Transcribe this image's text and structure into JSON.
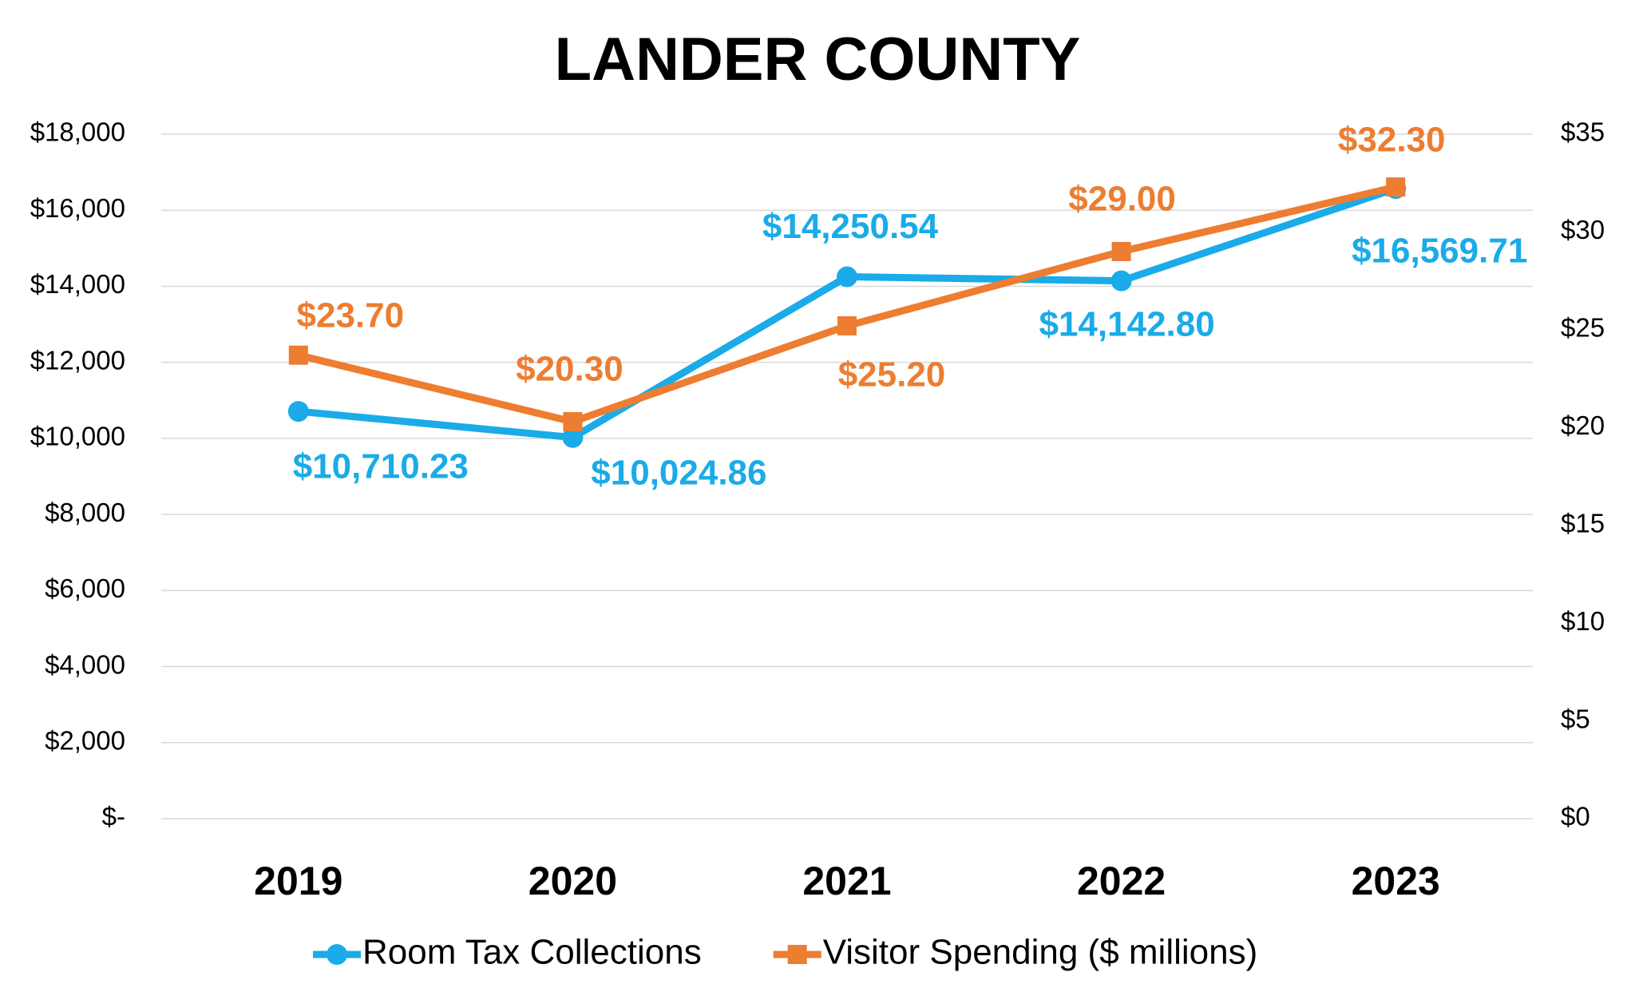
{
  "chart_data": {
    "type": "line",
    "title": "LANDER COUNTY",
    "categories": [
      "2019",
      "2020",
      "2021",
      "2022",
      "2023"
    ],
    "series": [
      {
        "name": "Room Tax Collections",
        "color": "#1aabe8",
        "marker": "circle",
        "axis": "y",
        "values": [
          10710.23,
          10024.86,
          14250.54,
          14142.8,
          16569.71
        ],
        "value_labels": [
          "$10,710.23",
          "$10,024.86",
          "$14,250.54",
          "$14,142.80",
          "$16,569.71"
        ]
      },
      {
        "name": "Visitor Spending ($ millions)",
        "color": "#ed7d31",
        "marker": "square",
        "axis": "y2",
        "values": [
          23.7,
          20.3,
          25.2,
          29.0,
          32.3
        ],
        "value_labels": [
          "$23.70",
          "$20.30",
          "$25.20",
          "$29.00",
          "$32.30"
        ]
      }
    ],
    "ylim": [
      0,
      18000
    ],
    "yticks": [
      {
        "value": 0,
        "label": "$-"
      },
      {
        "value": 2000,
        "label": "$2,000"
      },
      {
        "value": 4000,
        "label": "$4,000"
      },
      {
        "value": 6000,
        "label": "$6,000"
      },
      {
        "value": 8000,
        "label": "$8,000"
      },
      {
        "value": 10000,
        "label": "$10,000"
      },
      {
        "value": 12000,
        "label": "$12,000"
      },
      {
        "value": 14000,
        "label": "$14,000"
      },
      {
        "value": 16000,
        "label": "$16,000"
      },
      {
        "value": 18000,
        "label": "$18,000"
      }
    ],
    "y2lim": [
      0,
      35
    ],
    "y2ticks": [
      {
        "value": 0,
        "label": "$0"
      },
      {
        "value": 5,
        "label": "$5"
      },
      {
        "value": 10,
        "label": "$10"
      },
      {
        "value": 15,
        "label": "$15"
      },
      {
        "value": 20,
        "label": "$20"
      },
      {
        "value": 25,
        "label": "$25"
      },
      {
        "value": 30,
        "label": "$30"
      },
      {
        "value": 35,
        "label": "$35"
      }
    ],
    "grid": true,
    "legend": "bottom"
  }
}
